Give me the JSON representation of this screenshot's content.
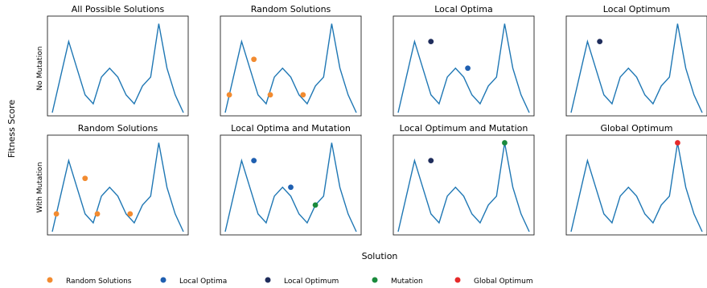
{
  "figure": {
    "ylabel": "Fitness Score",
    "xlabel": "Solution",
    "row_labels": [
      "No Mutation",
      "With Mutation"
    ]
  },
  "colors": {
    "line": "#1f77b4",
    "random": "#f28b30",
    "local_optima": "#1f5fb0",
    "local_optimum": "#1f2d5c",
    "mutation": "#1a8a3c",
    "global_optimum": "#e62a2a"
  },
  "legend": [
    {
      "label": "Random Solutions",
      "color_key": "random"
    },
    {
      "label": "Local Optima",
      "color_key": "local_optima"
    },
    {
      "label": "Local Optimum",
      "color_key": "local_optimum"
    },
    {
      "label": "Mutation",
      "color_key": "mutation"
    },
    {
      "label": "Global Optimum",
      "color_key": "global_optimum"
    }
  ],
  "chart_data": [
    {
      "type": "line",
      "title": "All Possible Solutions",
      "row": 0,
      "col": 0,
      "x": [
        0,
        1,
        2,
        3,
        4,
        5,
        6,
        7,
        8,
        9,
        10,
        11,
        12,
        13,
        14,
        15,
        16
      ],
      "y": [
        0,
        4,
        8,
        5,
        2,
        1,
        4,
        5,
        4,
        2,
        1,
        3,
        4,
        10,
        5,
        2,
        0
      ],
      "ylim": [
        0,
        10.5
      ],
      "points": []
    },
    {
      "type": "line",
      "title": "Random Solutions",
      "row": 0,
      "col": 1,
      "x": [
        0,
        1,
        2,
        3,
        4,
        5,
        6,
        7,
        8,
        9,
        10,
        11,
        12,
        13,
        14,
        15,
        16
      ],
      "y": [
        0,
        4,
        8,
        5,
        2,
        1,
        4,
        5,
        4,
        2,
        1,
        3,
        4,
        10,
        5,
        2,
        0
      ],
      "ylim": [
        0,
        10.5
      ],
      "points": [
        {
          "x": 0.5,
          "y": 2,
          "color_key": "random"
        },
        {
          "x": 3.5,
          "y": 6,
          "color_key": "random"
        },
        {
          "x": 5.5,
          "y": 2,
          "color_key": "random"
        },
        {
          "x": 9.5,
          "y": 2,
          "color_key": "random"
        }
      ]
    },
    {
      "type": "line",
      "title": "Local Optima",
      "row": 0,
      "col": 2,
      "x": [
        0,
        1,
        2,
        3,
        4,
        5,
        6,
        7,
        8,
        9,
        10,
        11,
        12,
        13,
        14,
        15,
        16
      ],
      "y": [
        0,
        4,
        8,
        5,
        2,
        1,
        4,
        5,
        4,
        2,
        1,
        3,
        4,
        10,
        5,
        2,
        0
      ],
      "ylim": [
        0,
        10.5
      ],
      "points": [
        {
          "x": 4,
          "y": 8,
          "color_key": "local_optimum"
        },
        {
          "x": 8.5,
          "y": 5,
          "color_key": "local_optima"
        }
      ]
    },
    {
      "type": "line",
      "title": "Local Optimum",
      "row": 0,
      "col": 3,
      "x": [
        0,
        1,
        2,
        3,
        4,
        5,
        6,
        7,
        8,
        9,
        10,
        11,
        12,
        13,
        14,
        15,
        16
      ],
      "y": [
        0,
        4,
        8,
        5,
        2,
        1,
        4,
        5,
        4,
        2,
        1,
        3,
        4,
        10,
        5,
        2,
        0
      ],
      "ylim": [
        0,
        10.5
      ],
      "points": [
        {
          "x": 3.5,
          "y": 8,
          "color_key": "local_optimum"
        }
      ]
    },
    {
      "type": "line",
      "title": "Random Solutions",
      "row": 1,
      "col": 0,
      "x": [
        0,
        1,
        2,
        3,
        4,
        5,
        6,
        7,
        8,
        9,
        10,
        11,
        12,
        13,
        14,
        15,
        16
      ],
      "y": [
        0,
        4,
        8,
        5,
        2,
        1,
        4,
        5,
        4,
        2,
        1,
        3,
        4,
        10,
        5,
        2,
        0
      ],
      "ylim": [
        0,
        10.5
      ],
      "points": [
        {
          "x": 0.5,
          "y": 2,
          "color_key": "random"
        },
        {
          "x": 4.0,
          "y": 6,
          "color_key": "random"
        },
        {
          "x": 5.5,
          "y": 2,
          "color_key": "random"
        },
        {
          "x": 9.5,
          "y": 2,
          "color_key": "random"
        }
      ]
    },
    {
      "type": "line",
      "title": "Local Optima and Mutation",
      "row": 1,
      "col": 1,
      "x": [
        0,
        1,
        2,
        3,
        4,
        5,
        6,
        7,
        8,
        9,
        10,
        11,
        12,
        13,
        14,
        15,
        16
      ],
      "y": [
        0,
        4,
        8,
        5,
        2,
        1,
        4,
        5,
        4,
        2,
        1,
        3,
        4,
        10,
        5,
        2,
        0
      ],
      "ylim": [
        0,
        10.5
      ],
      "points": [
        {
          "x": 3.5,
          "y": 8,
          "color_key": "local_optima"
        },
        {
          "x": 8,
          "y": 5,
          "color_key": "local_optima"
        },
        {
          "x": 11,
          "y": 3,
          "color_key": "mutation"
        }
      ]
    },
    {
      "type": "line",
      "title": "Local Optimum and Mutation",
      "row": 1,
      "col": 2,
      "x": [
        0,
        1,
        2,
        3,
        4,
        5,
        6,
        7,
        8,
        9,
        10,
        11,
        12,
        13,
        14,
        15,
        16
      ],
      "y": [
        0,
        4,
        8,
        5,
        2,
        1,
        4,
        5,
        4,
        2,
        1,
        3,
        4,
        10,
        5,
        2,
        0
      ],
      "ylim": [
        0,
        10.5
      ],
      "points": [
        {
          "x": 4,
          "y": 8,
          "color_key": "local_optimum"
        },
        {
          "x": 13,
          "y": 10,
          "color_key": "mutation"
        }
      ]
    },
    {
      "type": "line",
      "title": "Global Optimum",
      "row": 1,
      "col": 3,
      "x": [
        0,
        1,
        2,
        3,
        4,
        5,
        6,
        7,
        8,
        9,
        10,
        11,
        12,
        13,
        14,
        15,
        16
      ],
      "y": [
        0,
        4,
        8,
        5,
        2,
        1,
        4,
        5,
        4,
        2,
        1,
        3,
        4,
        10,
        5,
        2,
        0
      ],
      "ylim": [
        0,
        10.5
      ],
      "points": [
        {
          "x": 13,
          "y": 10,
          "color_key": "global_optimum"
        }
      ]
    }
  ]
}
